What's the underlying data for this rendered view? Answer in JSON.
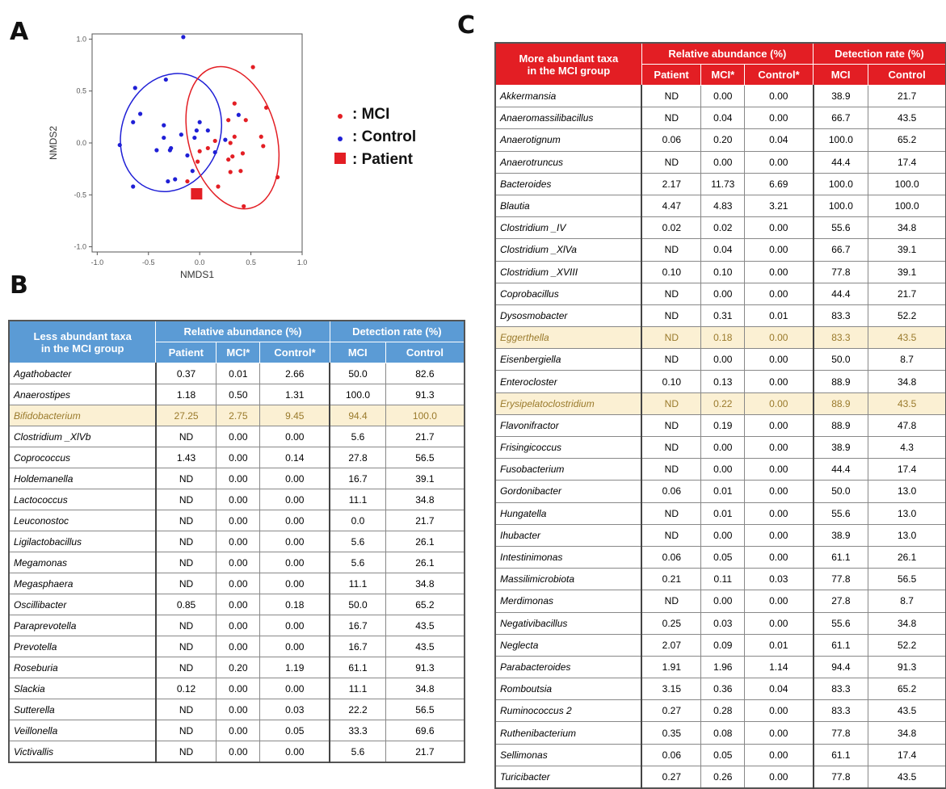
{
  "panels": {
    "a": "A",
    "b": "B",
    "c": "C"
  },
  "chart_data": {
    "type": "scatter",
    "xlabel": "NMDS1",
    "ylabel": "NMDS2",
    "xlim": [
      -1.05,
      1.0
    ],
    "ylim": [
      -1.05,
      1.05
    ],
    "x_ticks": [
      "-1.0",
      "-0.5",
      "0.0",
      "0.5",
      "1.0"
    ],
    "y_ticks": [
      "1.0",
      "0.5",
      "0.0",
      "-0.5",
      "-1.0"
    ],
    "colors": {
      "MCI": "#e31e24",
      "Control": "#1f1fd6",
      "Patient": "#e31e24"
    },
    "series": [
      {
        "name": "MCI",
        "x": [
          0.52,
          0.34,
          0.65,
          0.45,
          0.43,
          0.6,
          0.62,
          0.76,
          0.32,
          0.3,
          0.34,
          0.15,
          0.28,
          0.4,
          0.3,
          0.0,
          -0.02,
          0.08,
          -0.12,
          0.42,
          0.28,
          0.18
        ],
        "y": [
          0.73,
          0.38,
          0.34,
          0.22,
          -0.61,
          0.06,
          -0.03,
          -0.33,
          -0.13,
          0.0,
          0.06,
          0.02,
          -0.16,
          -0.27,
          -0.28,
          -0.08,
          -0.18,
          -0.05,
          -0.37,
          -0.1,
          0.22,
          -0.42
        ]
      },
      {
        "name": "Control",
        "x": [
          -0.16,
          -0.63,
          -0.33,
          -0.58,
          -0.78,
          -0.65,
          -0.42,
          -0.35,
          -0.28,
          -0.31,
          -0.18,
          -0.12,
          -0.07,
          0.0,
          -0.05,
          -0.03,
          0.08,
          0.15,
          -0.24,
          -0.29,
          -0.65,
          -0.35,
          0.38,
          0.25
        ],
        "y": [
          1.02,
          0.53,
          0.61,
          0.28,
          -0.02,
          -0.42,
          -0.07,
          0.05,
          -0.05,
          -0.37,
          0.08,
          -0.12,
          -0.27,
          0.2,
          0.05,
          0.12,
          0.12,
          -0.09,
          -0.35,
          -0.07,
          0.2,
          0.17,
          0.27,
          0.03
        ]
      },
      {
        "name": "Patient",
        "x": [
          -0.03
        ],
        "y": [
          -0.49
        ]
      }
    ],
    "ellipses": [
      {
        "name": "Control",
        "cx": -0.28,
        "cy": 0.1,
        "rx": 0.48,
        "ry": 0.58,
        "rotation_deg": 20
      },
      {
        "name": "MCI",
        "cx": 0.32,
        "cy": 0.05,
        "rx": 0.43,
        "ry": 0.7,
        "rotation_deg": -15
      }
    ],
    "legend": [
      {
        "symbol": "dot",
        "color": "#e31e24",
        "label": ": MCI"
      },
      {
        "symbol": "dot",
        "color": "#1f1fd6",
        "label": ": Control"
      },
      {
        "symbol": "square",
        "color": "#e31e24",
        "label": ": Patient"
      }
    ]
  },
  "tableB": {
    "header_taxa": [
      "Less abundant taxa",
      "in the MCI group"
    ],
    "header_rel": "Relative abundance (%)",
    "header_det": "Detection rate (%)",
    "sub": [
      "Patient",
      "MCI*",
      "Control*",
      "MCI",
      "Control"
    ],
    "highlight_color": "#fbf0d3",
    "rows": [
      [
        "Agathobacter",
        "0.37",
        "0.01",
        "2.66",
        "50.0",
        "82.6"
      ],
      [
        "Anaerostipes",
        "1.18",
        "0.50",
        "1.31",
        "100.0",
        "91.3"
      ],
      [
        "Bifidobacterium",
        "27.25",
        "2.75",
        "9.45",
        "94.4",
        "100.0"
      ],
      [
        "Clostridium _XlVb",
        "ND",
        "0.00",
        "0.00",
        "5.6",
        "21.7"
      ],
      [
        "Coprococcus",
        "1.43",
        "0.00",
        "0.14",
        "27.8",
        "56.5"
      ],
      [
        "Holdemanella",
        "ND",
        "0.00",
        "0.00",
        "16.7",
        "39.1"
      ],
      [
        "Lactococcus",
        "ND",
        "0.00",
        "0.00",
        "11.1",
        "34.8"
      ],
      [
        "Leuconostoc",
        "ND",
        "0.00",
        "0.00",
        "0.0",
        "21.7"
      ],
      [
        "Ligilactobacillus",
        "ND",
        "0.00",
        "0.00",
        "5.6",
        "26.1"
      ],
      [
        "Megamonas",
        "ND",
        "0.00",
        "0.00",
        "5.6",
        "26.1"
      ],
      [
        "Megasphaera",
        "ND",
        "0.00",
        "0.00",
        "11.1",
        "34.8"
      ],
      [
        "Oscillibacter",
        "0.85",
        "0.00",
        "0.18",
        "50.0",
        "65.2"
      ],
      [
        "Paraprevotella",
        "ND",
        "0.00",
        "0.00",
        "16.7",
        "43.5"
      ],
      [
        "Prevotella",
        "ND",
        "0.00",
        "0.00",
        "16.7",
        "43.5"
      ],
      [
        "Roseburia",
        "ND",
        "0.20",
        "1.19",
        "61.1",
        "91.3"
      ],
      [
        "Slackia",
        "0.12",
        "0.00",
        "0.00",
        "11.1",
        "34.8"
      ],
      [
        "Sutterella",
        "ND",
        "0.00",
        "0.03",
        "22.2",
        "56.5"
      ],
      [
        "Veillonella",
        "ND",
        "0.00",
        "0.05",
        "33.3",
        "69.6"
      ],
      [
        "Victivallis",
        "ND",
        "0.00",
        "0.00",
        "5.6",
        "21.7"
      ]
    ],
    "highlighted": [
      "Bifidobacterium"
    ]
  },
  "tableC": {
    "header_taxa": [
      "More abundant taxa",
      "in the MCI group"
    ],
    "header_rel": "Relative abundance (%)",
    "header_det": "Detection rate (%)",
    "sub": [
      "Patient",
      "MCI*",
      "Control*",
      "MCI",
      "Control"
    ],
    "rows": [
      [
        "Akkermansia",
        "ND",
        "0.00",
        "0.00",
        "38.9",
        "21.7"
      ],
      [
        "Anaeromassilibacillus",
        "ND",
        "0.04",
        "0.00",
        "66.7",
        "43.5"
      ],
      [
        "Anaerotignum",
        "0.06",
        "0.20",
        "0.04",
        "100.0",
        "65.2"
      ],
      [
        "Anaerotruncus",
        "ND",
        "0.00",
        "0.00",
        "44.4",
        "17.4"
      ],
      [
        "Bacteroides",
        "2.17",
        "11.73",
        "6.69",
        "100.0",
        "100.0"
      ],
      [
        "Blautia",
        "4.47",
        "4.83",
        "3.21",
        "100.0",
        "100.0"
      ],
      [
        "Clostridium _IV",
        "0.02",
        "0.02",
        "0.00",
        "55.6",
        "34.8"
      ],
      [
        "Clostridium _XlVa",
        "ND",
        "0.04",
        "0.00",
        "66.7",
        "39.1"
      ],
      [
        "Clostridium _XVIII",
        "0.10",
        "0.10",
        "0.00",
        "77.8",
        "39.1"
      ],
      [
        "Coprobacillus",
        "ND",
        "0.00",
        "0.00",
        "44.4",
        "21.7"
      ],
      [
        "Dysosmobacter",
        "ND",
        "0.31",
        "0.01",
        "83.3",
        "52.2"
      ],
      [
        "Eggerthella",
        "ND",
        "0.18",
        "0.00",
        "83.3",
        "43.5"
      ],
      [
        "Eisenbergiella",
        "ND",
        "0.00",
        "0.00",
        "50.0",
        "8.7"
      ],
      [
        "Enterocloster",
        "0.10",
        "0.13",
        "0.00",
        "88.9",
        "34.8"
      ],
      [
        "Erysipelatoclostridium",
        "ND",
        "0.22",
        "0.00",
        "88.9",
        "43.5"
      ],
      [
        "Flavonifractor",
        "ND",
        "0.19",
        "0.00",
        "88.9",
        "47.8"
      ],
      [
        "Frisingicoccus",
        "ND",
        "0.00",
        "0.00",
        "38.9",
        "4.3"
      ],
      [
        "Fusobacterium",
        "ND",
        "0.00",
        "0.00",
        "44.4",
        "17.4"
      ],
      [
        "Gordonibacter",
        "0.06",
        "0.01",
        "0.00",
        "50.0",
        "13.0"
      ],
      [
        "Hungatella",
        "ND",
        "0.01",
        "0.00",
        "55.6",
        "13.0"
      ],
      [
        "Ihubacter",
        "ND",
        "0.00",
        "0.00",
        "38.9",
        "13.0"
      ],
      [
        "Intestinimonas",
        "0.06",
        "0.05",
        "0.00",
        "61.1",
        "26.1"
      ],
      [
        "Massilimicrobiota",
        "0.21",
        "0.11",
        "0.03",
        "77.8",
        "56.5"
      ],
      [
        "Merdimonas",
        "ND",
        "0.00",
        "0.00",
        "27.8",
        "8.7"
      ],
      [
        "Negativibacillus",
        "0.25",
        "0.03",
        "0.00",
        "55.6",
        "34.8"
      ],
      [
        "Neglecta",
        "2.07",
        "0.09",
        "0.01",
        "61.1",
        "52.2"
      ],
      [
        "Parabacteroides",
        "1.91",
        "1.96",
        "1.14",
        "94.4",
        "91.3"
      ],
      [
        "Romboutsia",
        "3.15",
        "0.36",
        "0.04",
        "83.3",
        "65.2"
      ],
      [
        "Ruminococcus 2",
        "0.27",
        "0.28",
        "0.00",
        "83.3",
        "43.5"
      ],
      [
        "Ruthenibacterium",
        "0.35",
        "0.08",
        "0.00",
        "77.8",
        "34.8"
      ],
      [
        "Sellimonas",
        "0.06",
        "0.05",
        "0.00",
        "61.1",
        "17.4"
      ],
      [
        "Turicibacter",
        "0.27",
        "0.26",
        "0.00",
        "77.8",
        "43.5"
      ]
    ],
    "highlighted": [
      "Eggerthella",
      "Erysipelatoclostridium"
    ]
  }
}
